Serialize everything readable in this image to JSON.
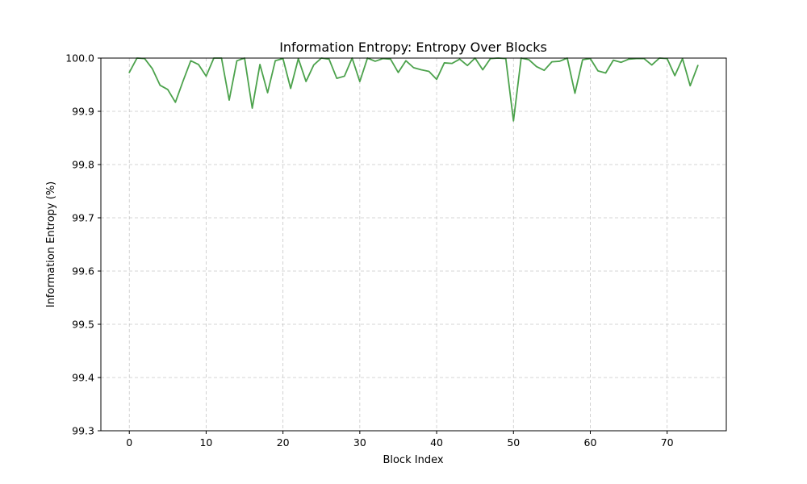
{
  "chart_data": {
    "type": "line",
    "title": "Information Entropy: Entropy Over Blocks",
    "xlabel": "Block Index",
    "ylabel": "Information Entropy (%)",
    "xlim": [
      -3.7,
      77.7
    ],
    "ylim": [
      99.3,
      100.0
    ],
    "xticks": [
      0,
      10,
      20,
      30,
      40,
      50,
      60,
      70
    ],
    "yticks": [
      99.3,
      99.4,
      99.5,
      99.6,
      99.7,
      99.8,
      99.9,
      100.0
    ],
    "ytick_labels": [
      "99.3",
      "99.4",
      "99.5",
      "99.6",
      "99.7",
      "99.8",
      "99.9",
      "100.0"
    ],
    "grid": true,
    "grid_style": "dashed",
    "series": [
      {
        "color": "#4ca24c",
        "x": [
          0,
          1,
          2,
          3,
          4,
          5,
          6,
          7,
          8,
          9,
          10,
          11,
          12,
          13,
          14,
          15,
          16,
          17,
          18,
          19,
          20,
          21,
          22,
          23,
          24,
          25,
          26,
          27,
          28,
          29,
          30,
          31,
          32,
          33,
          34,
          35,
          36,
          37,
          38,
          39,
          40,
          41,
          42,
          43,
          44,
          45,
          46,
          47,
          48,
          49,
          50,
          51,
          52,
          53,
          54,
          55,
          56,
          57,
          58,
          59,
          60,
          61,
          62,
          63,
          64,
          65,
          66,
          67,
          68,
          69,
          70,
          71,
          72,
          73,
          74
        ],
        "values": [
          99.973,
          100.0,
          99.999,
          99.98,
          99.949,
          99.941,
          99.917,
          99.957,
          99.995,
          99.988,
          99.966,
          100.0,
          100.0,
          99.921,
          99.995,
          100.0,
          99.906,
          99.988,
          99.935,
          99.995,
          99.999,
          99.943,
          99.999,
          99.956,
          99.987,
          100.0,
          99.998,
          99.962,
          99.966,
          100.0,
          99.956,
          100.0,
          99.994,
          99.999,
          99.998,
          99.973,
          99.995,
          99.982,
          99.978,
          99.975,
          99.96,
          99.991,
          99.99,
          99.998,
          99.986,
          100.0,
          99.978,
          99.999,
          100.0,
          99.999,
          99.882,
          100.0,
          99.997,
          99.984,
          99.977,
          99.993,
          99.994,
          100.0,
          99.934,
          99.997,
          99.999,
          99.976,
          99.972,
          99.996,
          99.992,
          99.998,
          99.999,
          99.999,
          99.987,
          100.0,
          99.999,
          99.967,
          99.999,
          99.948,
          99.986
        ]
      }
    ]
  }
}
